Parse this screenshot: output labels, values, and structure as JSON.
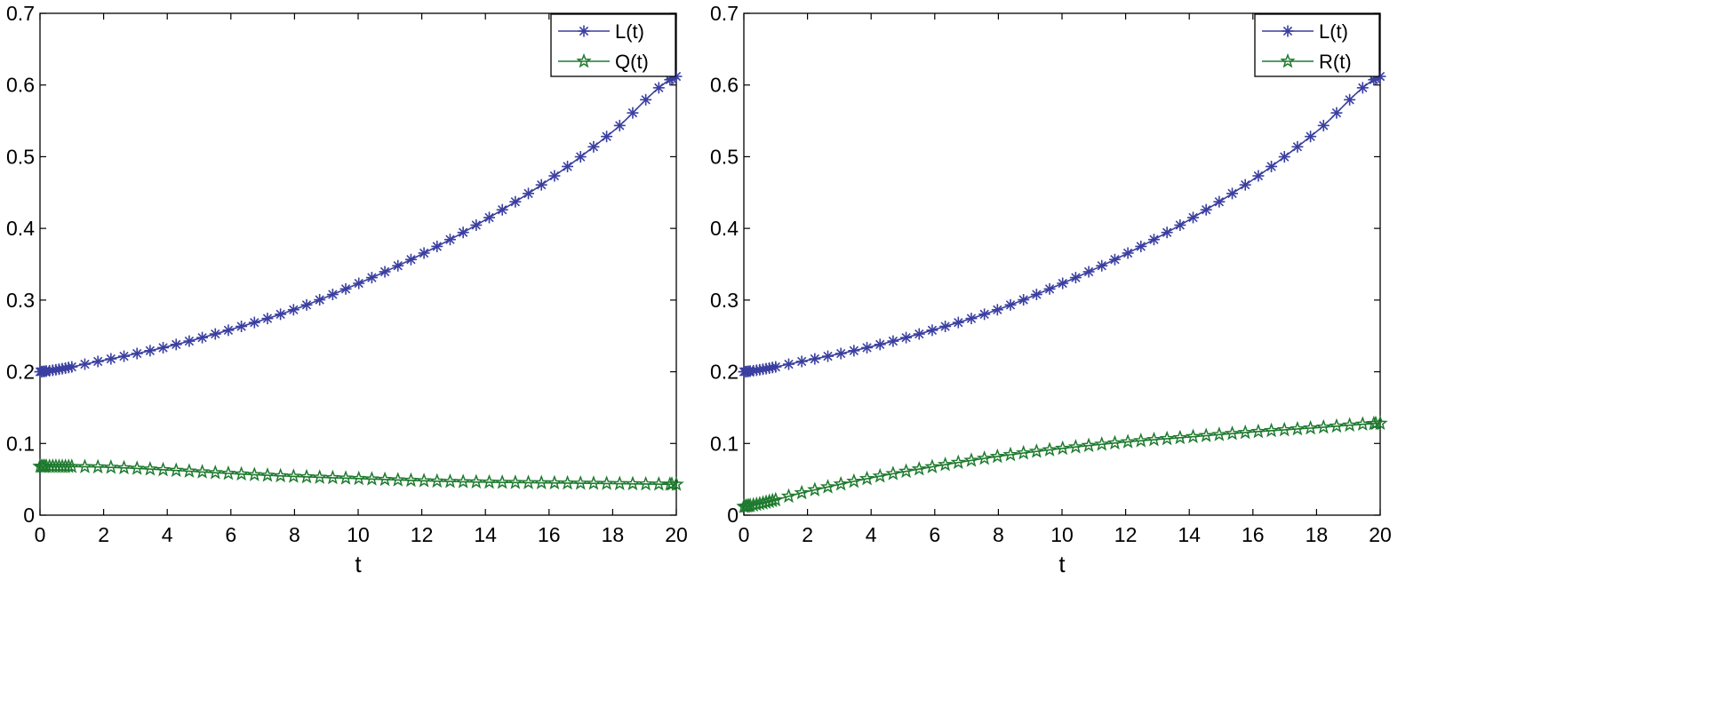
{
  "chart_data": [
    {
      "type": "line",
      "title": "",
      "xlabel": "t",
      "ylabel": "",
      "xlim": [
        0,
        20
      ],
      "ylim": [
        0,
        0.7
      ],
      "xticks": [
        "0",
        "2",
        "4",
        "6",
        "8",
        "10",
        "12",
        "14",
        "16",
        "18",
        "20"
      ],
      "yticks": [
        "0",
        "0.1",
        "0.2",
        "0.3",
        "0.4",
        "0.5",
        "0.6",
        "0.7"
      ],
      "legend_position": "top-right",
      "series": [
        {
          "name": "L(t)",
          "color": "#3a3fa0",
          "marker": "asterisk",
          "x": [
            0,
            2,
            4,
            6,
            8,
            10,
            12,
            14,
            16,
            18,
            20
          ],
          "values": [
            0.2,
            0.216,
            0.235,
            0.259,
            0.287,
            0.323,
            0.364,
            0.412,
            0.468,
            0.535,
            0.612
          ]
        },
        {
          "name": "Q(t)",
          "color": "#1e7a2e",
          "marker": "pentagram",
          "x": [
            0,
            2,
            4,
            6,
            8,
            10,
            12,
            14,
            16,
            18,
            20
          ],
          "values": [
            0.068,
            0.067,
            0.063,
            0.058,
            0.054,
            0.051,
            0.048,
            0.046,
            0.045,
            0.044,
            0.043
          ]
        }
      ]
    },
    {
      "type": "line",
      "title": "",
      "xlabel": "t",
      "ylabel": "",
      "xlim": [
        0,
        20
      ],
      "ylim": [
        0,
        0.7
      ],
      "xticks": [
        "0",
        "2",
        "4",
        "6",
        "8",
        "10",
        "12",
        "14",
        "16",
        "18",
        "20"
      ],
      "yticks": [
        "0",
        "0.1",
        "0.2",
        "0.3",
        "0.4",
        "0.5",
        "0.6",
        "0.7"
      ],
      "legend_position": "top-right",
      "series": [
        {
          "name": "L(t)",
          "color": "#3a3fa0",
          "marker": "asterisk",
          "x": [
            0,
            2,
            4,
            6,
            8,
            10,
            12,
            14,
            16,
            18,
            20
          ],
          "values": [
            0.2,
            0.216,
            0.235,
            0.259,
            0.287,
            0.323,
            0.364,
            0.412,
            0.468,
            0.535,
            0.612
          ]
        },
        {
          "name": "R(t)",
          "color": "#1e7a2e",
          "marker": "pentagram",
          "x": [
            0,
            2,
            4,
            6,
            8,
            10,
            12,
            14,
            16,
            18,
            20
          ],
          "values": [
            0.012,
            0.033,
            0.052,
            0.068,
            0.082,
            0.093,
            0.102,
            0.109,
            0.116,
            0.122,
            0.128
          ]
        }
      ]
    }
  ]
}
